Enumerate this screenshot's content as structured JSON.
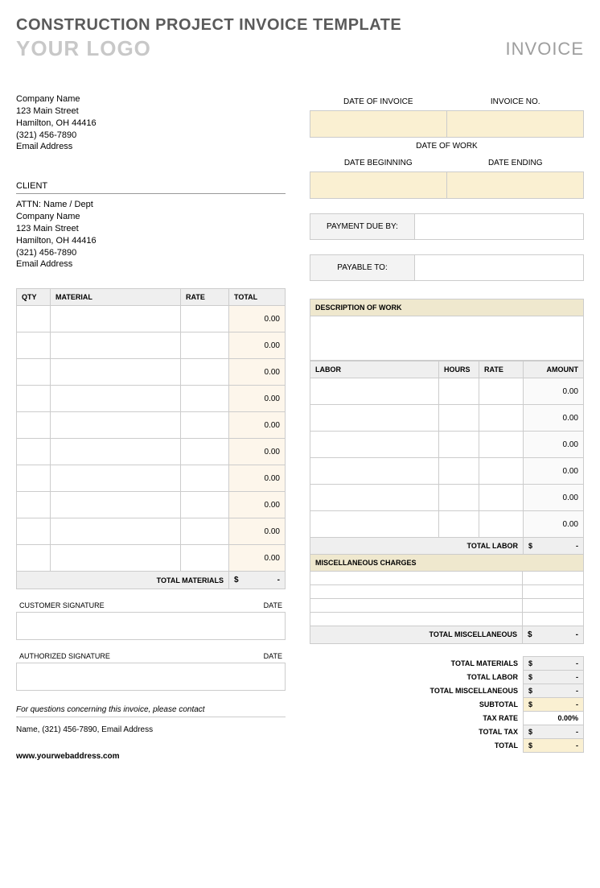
{
  "header": {
    "title": "CONSTRUCTION PROJECT INVOICE TEMPLATE",
    "logo_placeholder": "YOUR LOGO",
    "invoice_label": "INVOICE"
  },
  "colors": {
    "tan_fill": "#faf0d2",
    "light_tan": "#fdf6eb",
    "header_gray": "#efefef",
    "beige_header": "#efe8ce",
    "border": "#cccccc",
    "title_color": "#5a5a5a",
    "logo_color": "#c8c8c8"
  },
  "company": {
    "name": "Company Name",
    "street": "123 Main Street",
    "city": "Hamilton, OH  44416",
    "phone": "(321) 456-7890",
    "email": "Email Address"
  },
  "client": {
    "heading": "CLIENT",
    "attn": "ATTN: Name / Dept",
    "name": "Company Name",
    "street": "123 Main Street",
    "city": "Hamilton, OH  44416",
    "phone": "(321) 456-7890",
    "email": "Email Address"
  },
  "invoice_meta": {
    "date_label": "DATE OF INVOICE",
    "no_label": "INVOICE NO.",
    "date_of_work": "DATE OF WORK",
    "date_begin": "DATE BEGINNING",
    "date_end": "DATE ENDING",
    "payment_due_label": "PAYMENT DUE BY:",
    "payable_to_label": "PAYABLE TO:"
  },
  "materials": {
    "headers": {
      "qty": "QTY",
      "material": "MATERIAL",
      "rate": "RATE",
      "total": "TOTAL"
    },
    "rows": [
      {
        "total": "0.00"
      },
      {
        "total": "0.00"
      },
      {
        "total": "0.00"
      },
      {
        "total": "0.00"
      },
      {
        "total": "0.00"
      },
      {
        "total": "0.00"
      },
      {
        "total": "0.00"
      },
      {
        "total": "0.00"
      },
      {
        "total": "0.00"
      },
      {
        "total": "0.00"
      }
    ],
    "total_label": "TOTAL MATERIALS",
    "total_value_prefix": "$",
    "total_value": "-"
  },
  "work_desc": {
    "header": "DESCRIPTION OF WORK"
  },
  "labor": {
    "headers": {
      "labor": "LABOR",
      "hours": "HOURS",
      "rate": "RATE",
      "amount": "AMOUNT"
    },
    "rows": [
      {
        "amount": "0.00"
      },
      {
        "amount": "0.00"
      },
      {
        "amount": "0.00"
      },
      {
        "amount": "0.00"
      },
      {
        "amount": "0.00"
      },
      {
        "amount": "0.00"
      }
    ],
    "total_label": "TOTAL LABOR",
    "total_prefix": "$",
    "total_value": "-"
  },
  "misc": {
    "header": "MISCELLANEOUS CHARGES",
    "row_count": 4,
    "total_label": "TOTAL MISCELLANEOUS",
    "total_prefix": "$",
    "total_value": "-"
  },
  "signatures": {
    "customer": "CUSTOMER SIGNATURE",
    "authorized": "AUTHORIZED SIGNATURE",
    "date": "DATE"
  },
  "summary": {
    "rows": [
      {
        "label": "TOTAL MATERIALS",
        "prefix": "$",
        "value": "-",
        "style": "gray"
      },
      {
        "label": "TOTAL LABOR",
        "prefix": "$",
        "value": "-",
        "style": "gray"
      },
      {
        "label": "TOTAL MISCELLANEOUS",
        "prefix": "$",
        "value": "-",
        "style": "gray"
      },
      {
        "label": "SUBTOTAL",
        "prefix": "$",
        "value": "-",
        "style": "tan"
      },
      {
        "label": "TAX RATE",
        "prefix": "",
        "value": "0.00%",
        "style": "white"
      },
      {
        "label": "TOTAL TAX",
        "prefix": "$",
        "value": "-",
        "style": "gray"
      },
      {
        "label": "TOTAL",
        "prefix": "$",
        "value": "-",
        "style": "tan"
      }
    ]
  },
  "footer": {
    "note": "For questions concerning this invoice, please contact",
    "contact": "Name, (321) 456-7890, Email Address",
    "url": "www.yourwebaddress.com"
  }
}
